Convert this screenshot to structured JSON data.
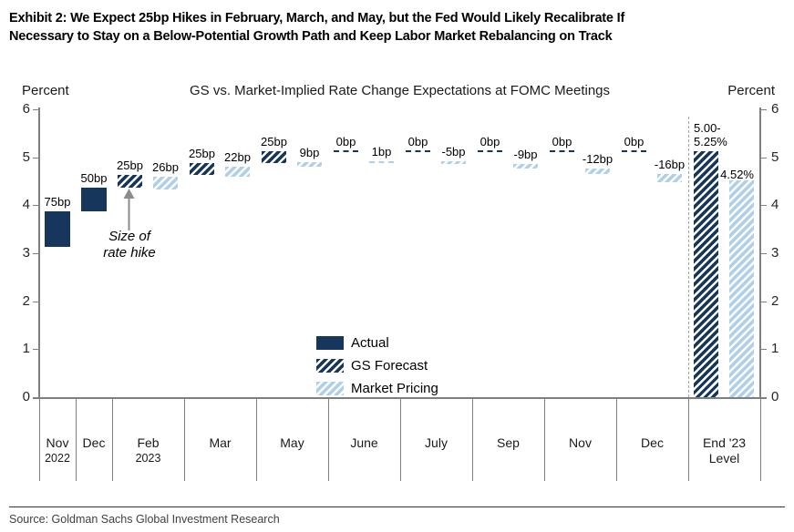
{
  "exhibit_title_lines": [
    "Exhibit 2: We Expect 25bp Hikes in February, March, and May, but the Fed Would Likely Recalibrate If",
    "Necessary to Stay on a Below-Potential Growth Path and Keep Labor Market Rebalancing on Track"
  ],
  "source": "Source: Goldman Sachs Global Investment Research",
  "colors": {
    "navy": "#16365C",
    "light_blue": "#AFCFEA",
    "axis_gray": "#7f7f7f",
    "arrow_gray": "#8c8c8c"
  },
  "chart_data": {
    "type": "bar",
    "subtype": "floating-waterfall",
    "title": "GS vs. Market-Implied Rate Change Expectations at FOMC Meetings",
    "left_axis_label": "Percent",
    "right_axis_label": "Percent",
    "ylim": [
      0,
      6
    ],
    "yticks": [
      0,
      1,
      2,
      3,
      4,
      5,
      6
    ],
    "grid": false,
    "legend": {
      "position": "inside-bottom-center",
      "entries": [
        {
          "label": "Actual",
          "style": "solid-dark"
        },
        {
          "label": "GS Forecast",
          "style": "hatch-dark"
        },
        {
          "label": "Market Pricing",
          "style": "hatch-light"
        }
      ]
    },
    "annotation": {
      "line1": "Size of",
      "line2": "rate hike",
      "points_to": "Feb 2023 GS bar"
    },
    "categories": [
      {
        "lines": [
          "Nov",
          "2022"
        ],
        "bars": [
          {
            "series": "actual",
            "label": "75bp",
            "from": 3.125,
            "to": 3.875,
            "style": "solid-dark"
          }
        ]
      },
      {
        "lines": [
          "Dec"
        ],
        "bars": [
          {
            "series": "actual",
            "label": "50bp",
            "from": 3.875,
            "to": 4.375,
            "style": "solid-dark"
          }
        ]
      },
      {
        "lines": [
          "Feb",
          "2023"
        ],
        "bars": [
          {
            "series": "gs",
            "label": "25bp",
            "from": 4.375,
            "to": 4.625,
            "style": "hatch-dark"
          },
          {
            "series": "market",
            "label": "26bp",
            "from": 4.33,
            "to": 4.59,
            "style": "hatch-light"
          }
        ]
      },
      {
        "lines": [
          "Mar"
        ],
        "bars": [
          {
            "series": "gs",
            "label": "25bp",
            "from": 4.625,
            "to": 4.875,
            "style": "hatch-dark"
          },
          {
            "series": "market",
            "label": "22bp",
            "from": 4.59,
            "to": 4.81,
            "style": "hatch-light"
          }
        ]
      },
      {
        "lines": [
          "May"
        ],
        "bars": [
          {
            "series": "gs",
            "label": "25bp",
            "from": 4.875,
            "to": 5.125,
            "style": "hatch-dark"
          },
          {
            "series": "market",
            "label": "9bp",
            "from": 4.81,
            "to": 4.9,
            "style": "hatch-light"
          }
        ]
      },
      {
        "lines": [
          "June"
        ],
        "bars": [
          {
            "series": "gs",
            "label": "0bp",
            "from": 5.125,
            "to": 5.125,
            "style": "dash-dark"
          },
          {
            "series": "market",
            "label": "1bp",
            "from": 4.9,
            "to": 4.91,
            "style": "dash-light"
          }
        ]
      },
      {
        "lines": [
          "July"
        ],
        "bars": [
          {
            "series": "gs",
            "label": "0bp",
            "from": 5.125,
            "to": 5.125,
            "style": "dash-dark"
          },
          {
            "series": "market",
            "label": "-5bp",
            "from": 4.91,
            "to": 4.86,
            "style": "hatch-light"
          }
        ]
      },
      {
        "lines": [
          "Sep"
        ],
        "bars": [
          {
            "series": "gs",
            "label": "0bp",
            "from": 5.125,
            "to": 5.125,
            "style": "dash-dark"
          },
          {
            "series": "market",
            "label": "-9bp",
            "from": 4.86,
            "to": 4.77,
            "style": "hatch-light"
          }
        ]
      },
      {
        "lines": [
          "Nov"
        ],
        "bars": [
          {
            "series": "gs",
            "label": "0bp",
            "from": 5.125,
            "to": 5.125,
            "style": "dash-dark"
          },
          {
            "series": "market",
            "label": "-12bp",
            "from": 4.77,
            "to": 4.65,
            "style": "hatch-light"
          }
        ]
      },
      {
        "lines": [
          "Dec"
        ],
        "bars": [
          {
            "series": "gs",
            "label": "0bp",
            "from": 5.125,
            "to": 5.125,
            "style": "dash-dark"
          },
          {
            "series": "market",
            "label": "-16bp",
            "from": 4.65,
            "to": 4.49,
            "style": "hatch-light"
          }
        ]
      },
      {
        "lines": [
          "End '23",
          "Level"
        ],
        "separator_before": true,
        "bars": [
          {
            "series": "gs",
            "label": "5.00-\n5.25%",
            "from": 0,
            "to": 5.125,
            "style": "hatch-dark",
            "label_align": "left-top"
          },
          {
            "series": "market",
            "label": "4.52%",
            "from": 0,
            "to": 4.52,
            "style": "hatch-light",
            "label_align": "right-top"
          }
        ]
      }
    ]
  }
}
